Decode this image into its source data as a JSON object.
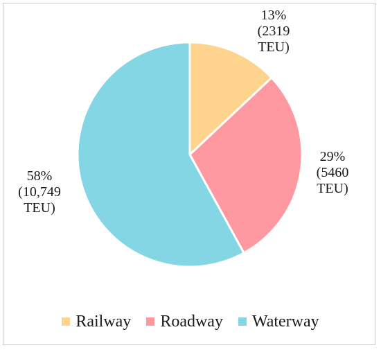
{
  "chart_data": {
    "type": "pie",
    "slices": [
      {
        "name": "Railway",
        "value": 13,
        "label_lines": [
          "13%",
          "(2319",
          "TEU)"
        ],
        "color": "#FDD38E"
      },
      {
        "name": "Roadway",
        "value": 29,
        "label_lines": [
          "29%",
          "(5460",
          "TEU)"
        ],
        "color": "#FF99A1"
      },
      {
        "name": "Waterway",
        "value": 58,
        "label_lines": [
          "58%",
          "(10,749",
          "TEU)"
        ],
        "color": "#85D6E5"
      }
    ],
    "legend_placement": "bottom"
  }
}
